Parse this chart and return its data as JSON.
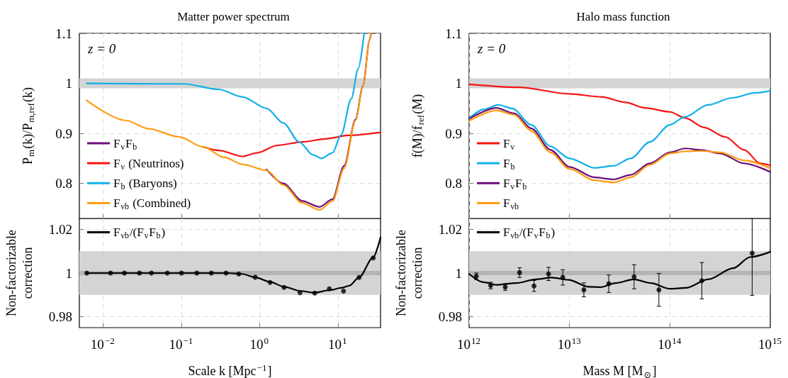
{
  "chart_data": [
    {
      "type": "line",
      "title": "Matter power spectrum",
      "ylabel": "P$_{m}$(k)/P$_{m,ref}$(k)",
      "xlim": [
        0.005,
        35
      ],
      "xticks": [
        0.01,
        0.1,
        1,
        10
      ],
      "ylim": [
        0.73,
        1.1
      ],
      "yticks": [
        0.8,
        0.9,
        1,
        1.1
      ],
      "log": "x",
      "grid": true,
      "legend": "bottom left",
      "tick_labels": "y",
      "annotations": [
        "z = 0"
      ],
      "bands": [
        {
          "axis": "y",
          "from": 0.99,
          "to": 1.01,
          "color": "#d4d4d4"
        }
      ],
      "series": [
        {
          "name": "F$_{ν}$F$_{b}$",
          "color": "#6a0f78",
          "x": [
            1.23,
            2,
            3.5,
            5.8,
            8.5,
            12,
            16.8,
            20.8,
            25.5,
            26.5
          ],
          "values": [
            0.828,
            0.8,
            0.765,
            0.753,
            0.768,
            0.835,
            0.928,
            0.994,
            1.088,
            1.1
          ]
        },
        {
          "name": "F$_{ν}$ (Neutrinos)",
          "color": "#f51414",
          "x": [
            0.19,
            0.3,
            0.61,
            0.92,
            1.7,
            3.5,
            6.9,
            13.6,
            35
          ],
          "values": [
            0.873,
            0.866,
            0.854,
            0.861,
            0.876,
            0.883,
            0.889,
            0.896,
            0.902
          ]
        },
        {
          "name": "F$_{b}$ (Baryons)",
          "color": "#14b0ea",
          "x": [
            0.0062,
            0.108,
            0.3,
            0.6,
            1.23,
            2,
            3.2,
            4.8,
            6.2,
            8.5,
            11,
            14.8,
            18.2,
            21.6
          ],
          "values": [
            1.0,
            0.999,
            0.988,
            0.973,
            0.95,
            0.921,
            0.883,
            0.857,
            0.85,
            0.861,
            0.897,
            0.969,
            1.03,
            1.1
          ]
        },
        {
          "name": "F$_{νb}$ (Combined)",
          "color": "#ff9a10",
          "x": [
            0.0062,
            0.0194,
            0.039,
            0.094,
            0.19,
            0.355,
            0.61,
            1.23,
            2,
            3.5,
            5.8,
            8.5,
            12,
            16.8,
            20.8,
            25.5,
            26.5
          ],
          "values": [
            0.966,
            0.926,
            0.909,
            0.893,
            0.873,
            0.852,
            0.838,
            0.826,
            0.797,
            0.761,
            0.747,
            0.764,
            0.83,
            0.926,
            0.993,
            1.088,
            1.1
          ]
        }
      ]
    },
    {
      "type": "line",
      "title": "Halo mass function",
      "ylabel": "f(M)/f$_{ref}$(M)",
      "xlim": [
        1000000000000.0,
        1000000000000000.0
      ],
      "xticks": [
        1000000000000.0,
        10000000000000.0,
        100000000000000.0,
        1000000000000000.0
      ],
      "ylim": [
        0.73,
        1.1
      ],
      "yticks": [
        0.8,
        0.9,
        1,
        1.1
      ],
      "log": "x",
      "grid": true,
      "legend": "bottom left",
      "tick_labels": "y",
      "annotations": [
        "z = 0"
      ],
      "bands": [
        {
          "axis": "y",
          "from": 0.99,
          "to": 1.01,
          "color": "#d4d4d4"
        }
      ],
      "series": [
        {
          "name": "F$_{ν}$",
          "color": "#f51414",
          "x": [
            1000000000000.0,
            3160000000000.0,
            10000000000000.0,
            20900000000000.0,
            36300000000000.0,
            56200000000000.0,
            100000000000000.0,
            141000000000000.0,
            219000000000000.0,
            355000000000000.0,
            550000000000000.0,
            794000000000000.0,
            1000000000000000.0
          ],
          "values": [
            0.998,
            0.992,
            0.979,
            0.973,
            0.962,
            0.951,
            0.943,
            0.931,
            0.912,
            0.893,
            0.867,
            0.84,
            0.836
          ]
        },
        {
          "name": "F$_{b}$",
          "color": "#14b0ea",
          "x": [
            1000000000000.0,
            1410000000000.0,
            1950000000000.0,
            2690000000000.0,
            4170000000000.0,
            6460000000000.0,
            10000000000000.0,
            17800000000000.0,
            27500000000000.0,
            40700000000000.0,
            63100000000000.0,
            100000000000000.0,
            141000000000000.0,
            240000000000000.0,
            417000000000000.0,
            708000000000000.0,
            1000000000000000.0
          ],
          "values": [
            0.93,
            0.948,
            0.957,
            0.95,
            0.917,
            0.874,
            0.85,
            0.831,
            0.835,
            0.85,
            0.883,
            0.917,
            0.933,
            0.957,
            0.971,
            0.981,
            0.985
          ]
        },
        {
          "name": "F$_{ν}$F$_{b}$",
          "color": "#6a0f78",
          "x": [
            1000000000000.0,
            1860000000000.0,
            2820000000000.0,
            4170000000000.0,
            6460000000000.0,
            10000000000000.0,
            17800000000000.0,
            27500000000000.0,
            40700000000000.0,
            63100000000000.0,
            100000000000000.0,
            141000000000000.0,
            204000000000000.0,
            316000000000000.0,
            550000000000000.0,
            1000000000000000.0
          ],
          "values": [
            0.929,
            0.951,
            0.94,
            0.91,
            0.867,
            0.833,
            0.812,
            0.808,
            0.817,
            0.84,
            0.862,
            0.87,
            0.867,
            0.86,
            0.84,
            0.823
          ]
        },
        {
          "name": "F$_{νb}$",
          "color": "#ff9a10",
          "x": [
            1000000000000.0,
            1860000000000.0,
            2820000000000.0,
            4170000000000.0,
            6460000000000.0,
            10000000000000.0,
            17800000000000.0,
            27500000000000.0,
            40700000000000.0,
            63100000000000.0,
            100000000000000.0,
            141000000000000.0,
            204000000000000.0,
            316000000000000.0,
            550000000000000.0,
            1000000000000000.0
          ],
          "values": [
            0.925,
            0.946,
            0.937,
            0.905,
            0.862,
            0.829,
            0.806,
            0.802,
            0.812,
            0.837,
            0.86,
            0.864,
            0.865,
            0.862,
            0.846,
            0.83
          ]
        }
      ]
    },
    {
      "type": "line",
      "xlabel": "Scale k [Mpc$^{−1}$]",
      "ylabel": "Non-factorizable\ncorrection",
      "xlim": [
        0.005,
        35
      ],
      "xticks": [
        {
          "value": 0.01,
          "label": "10$^{−2}$"
        },
        {
          "value": 0.1,
          "label": "10$^{−1}$"
        },
        {
          "value": 1,
          "label": "10$^{0}$"
        },
        {
          "value": 10,
          "label": "10$^{1}$"
        }
      ],
      "ylim": [
        0.975,
        1.025
      ],
      "yticks": [
        0.98,
        1,
        1.02
      ],
      "log": "x",
      "grid": true,
      "legend": "top left",
      "bands": [
        {
          "axis": "y",
          "from": 0.99,
          "to": 1.01,
          "color": "#d4d4d4"
        },
        {
          "axis": "y",
          "from": 0.999,
          "to": 1.001,
          "color": "#b4b4b4"
        }
      ],
      "series": [
        {
          "name": "F$_{νb}$/(F$_{ν}$F$_{b}$)",
          "color": "#000000",
          "marker": "none",
          "x": [
            0.0062,
            0.1,
            0.4,
            0.6,
            0.88,
            1.36,
            2.05,
            3.3,
            5,
            8,
            11,
            14,
            18.6,
            28,
            35
          ],
          "values": [
            1.0,
            1.0,
            1.0,
            0.9996,
            0.998,
            0.996,
            0.9937,
            0.9918,
            0.991,
            0.9922,
            0.9932,
            0.9942,
            0.998,
            1.007,
            1.0163
          ]
        },
        {
          "type": "scatter",
          "color": "#000000",
          "marker": "circle",
          "x": [
            0.00622,
            0.0125,
            0.0188,
            0.0292,
            0.0416,
            0.0664,
            0.1007,
            0.158,
            0.242,
            0.373,
            0.542,
            0.879,
            1.36,
            2.05,
            3.28,
            5.05,
            7.77,
            11.8,
            18.6,
            28.2
          ],
          "values": [
            1.0,
            1.0,
            1.0,
            1.0,
            1.0,
            1.0,
            1.0,
            1.0,
            1.0,
            1.0,
            0.9996,
            0.9981,
            0.9957,
            0.9934,
            0.991,
            0.9908,
            0.9928,
            0.9917,
            0.998,
            1.0069
          ]
        }
      ]
    },
    {
      "type": "line",
      "xlabel": "Mass M [M$_{⊙}$]",
      "ylabel": "Non-factorizable\ncorrection",
      "xlim": [
        1000000000000.0,
        1000000000000000.0
      ],
      "xticks": [
        {
          "value": 1000000000000.0,
          "label": "10$^{12}$"
        },
        {
          "value": 10000000000000.0,
          "label": "10$^{13}$"
        },
        {
          "value": 100000000000000.0,
          "label": "10$^{14}$"
        },
        {
          "value": 1000000000000000.0,
          "label": "10$^{15}$"
        }
      ],
      "ylim": [
        0.975,
        1.025
      ],
      "yticks": [
        0.98,
        1,
        1.02
      ],
      "log": "x",
      "grid": true,
      "legend": "top left",
      "bands": [
        {
          "axis": "y",
          "from": 0.99,
          "to": 1.01,
          "color": "#d4d4d4"
        },
        {
          "axis": "y",
          "from": 0.999,
          "to": 1.001,
          "color": "#b4b4b4"
        }
      ],
      "series": [
        {
          "name": "F$_{νb}$/(F$_{ν}$F$_{b}$)",
          "color": "#000000",
          "marker": "none",
          "x": [
            1000000000000.0,
            1390000000000.0,
            1860000000000.0,
            2950000000000.0,
            4640000000000.0,
            6600000000000.0,
            9800000000000.0,
            15500000000000.0,
            20400000000000.0,
            28800000000000.0,
            43700000000000.0,
            64600000000000.0,
            100000000000000.0,
            144000000000000.0,
            240000000000000.0,
            427000000000000.0,
            630000000000000.0,
            1000000000000000.0
          ],
          "values": [
            0.9996,
            0.9958,
            0.9946,
            0.9954,
            0.9971,
            0.9979,
            0.9969,
            0.9937,
            0.9935,
            0.9954,
            0.9971,
            0.9954,
            0.9928,
            0.9932,
            0.9971,
            1.0022,
            1.0073,
            1.0097
          ]
        },
        {
          "type": "scatter",
          "color": "#000000",
          "marker": "circle",
          "x": [
            1180000000000.0,
            1640000000000.0,
            2290000000000.0,
            3180000000000.0,
            4430000000000.0,
            6180000000000.0,
            8570000000000.0,
            13900000000000.0,
            24600000000000.0,
            44000000000000.0,
            77700000000000.0,
            208000000000000.0,
            660000000000000.0
          ],
          "values": [
            0.9985,
            0.9943,
            0.9936,
            1.0002,
            0.9941,
            0.9996,
            0.998,
            0.9923,
            0.9951,
            0.9983,
            0.9923,
            0.9965,
            1.0091
          ],
          "errors": [
            [
              0.997,
              1.0
            ],
            [
              0.9928,
              0.9958
            ],
            [
              0.9921,
              0.9951
            ],
            [
              0.998,
              1.0024
            ],
            [
              0.9916,
              0.9966
            ],
            [
              0.9966,
              1.0026
            ],
            [
              0.9945,
              1.0015
            ],
            [
              0.9891,
              0.9955
            ],
            [
              0.9911,
              0.9991
            ],
            [
              0.9928,
              1.0038
            ],
            [
              0.9848,
              0.9998
            ],
            [
              0.9882,
              1.0048
            ],
            [
              0.9898,
              1.025
            ]
          ]
        }
      ]
    }
  ]
}
